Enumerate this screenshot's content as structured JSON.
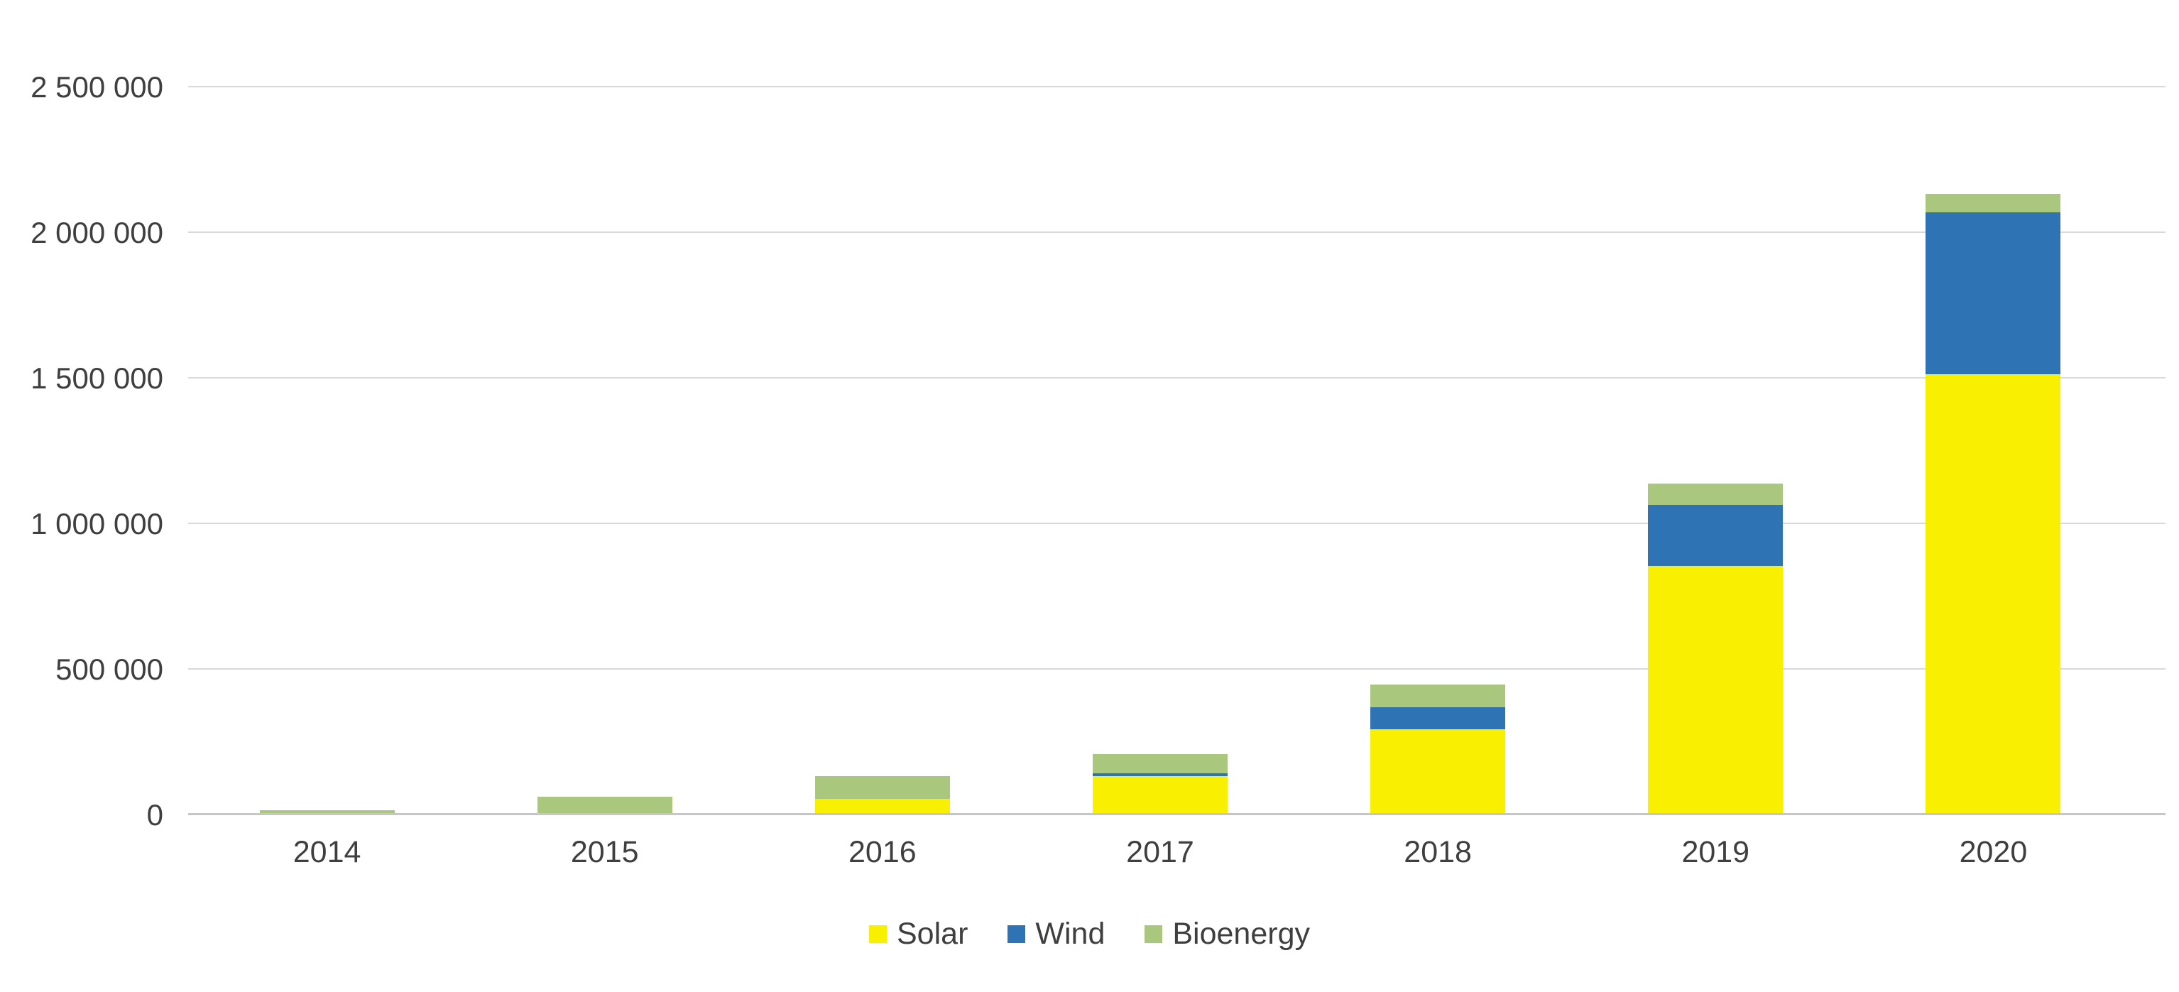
{
  "chart_data": {
    "type": "bar",
    "stacked": true,
    "title": "",
    "xlabel": "",
    "ylabel": "",
    "categories": [
      "2014",
      "2015",
      "2016",
      "2017",
      "2018",
      "2019",
      "2020"
    ],
    "series": [
      {
        "name": "Solar",
        "color": "#f9ef00",
        "values": [
          3000,
          3000,
          55000,
          135000,
          295000,
          855000,
          1515000
        ]
      },
      {
        "name": "Wind",
        "color": "#2e74b5",
        "values": [
          0,
          0,
          0,
          10000,
          75000,
          210000,
          555000
        ]
      },
      {
        "name": "Bioenergy",
        "color": "#a9c87e",
        "values": [
          15000,
          60000,
          80000,
          65000,
          80000,
          75000,
          65000
        ]
      }
    ],
    "ylim": [
      0,
      2500000
    ],
    "ytick_values": [
      0,
      500000,
      1000000,
      1500000,
      2000000,
      2500000
    ],
    "ytick_labels": [
      "0",
      "500 000",
      "1 000 000",
      "1 500 000",
      "2 000 000",
      "2 500 000"
    ],
    "grid": true,
    "legend_position": "bottom",
    "legend_labels": [
      "Solar",
      "Wind",
      "Bioenergy"
    ]
  }
}
